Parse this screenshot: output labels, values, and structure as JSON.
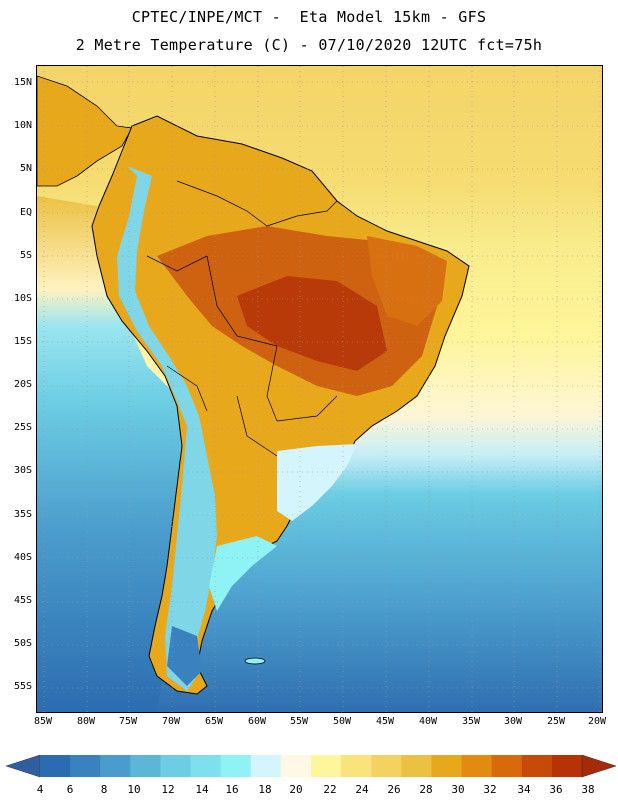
{
  "header": {
    "line1": "CPTEC/INPE/MCT -  Eta Model 15km - GFS",
    "line2": "2 Metre Temperature (C) - 07/10/2020 12UTC fct=75h"
  },
  "map": {
    "lat_labels": [
      "15N",
      "10N",
      "5N",
      "EQ",
      "5S",
      "10S",
      "15S",
      "20S",
      "25S",
      "30S",
      "35S",
      "40S",
      "45S",
      "50S",
      "55S"
    ],
    "lon_labels": [
      "85W",
      "80W",
      "75W",
      "70W",
      "65W",
      "60W",
      "55W",
      "50W",
      "45W",
      "40W",
      "35W",
      "30W",
      "25W",
      "20W"
    ]
  },
  "colorbar": {
    "levels": [
      "4",
      "6",
      "8",
      "10",
      "12",
      "14",
      "16",
      "18",
      "20",
      "22",
      "24",
      "26",
      "28",
      "30",
      "32",
      "34",
      "36",
      "38"
    ],
    "colors": [
      "#2b6cb0",
      "#3a82bf",
      "#4a9ccc",
      "#5bb6d8",
      "#6ccde3",
      "#7de0ec",
      "#8ff2f5",
      "#d4f5fb",
      "#fff8e6",
      "#fff59a",
      "#f8e47a",
      "#f4d260",
      "#ecc042",
      "#e8a81c",
      "#e28b10",
      "#d86a0c",
      "#c84a08",
      "#b83208"
    ],
    "low_color": "#2f5f9e",
    "high_color": "#a52a06"
  }
}
